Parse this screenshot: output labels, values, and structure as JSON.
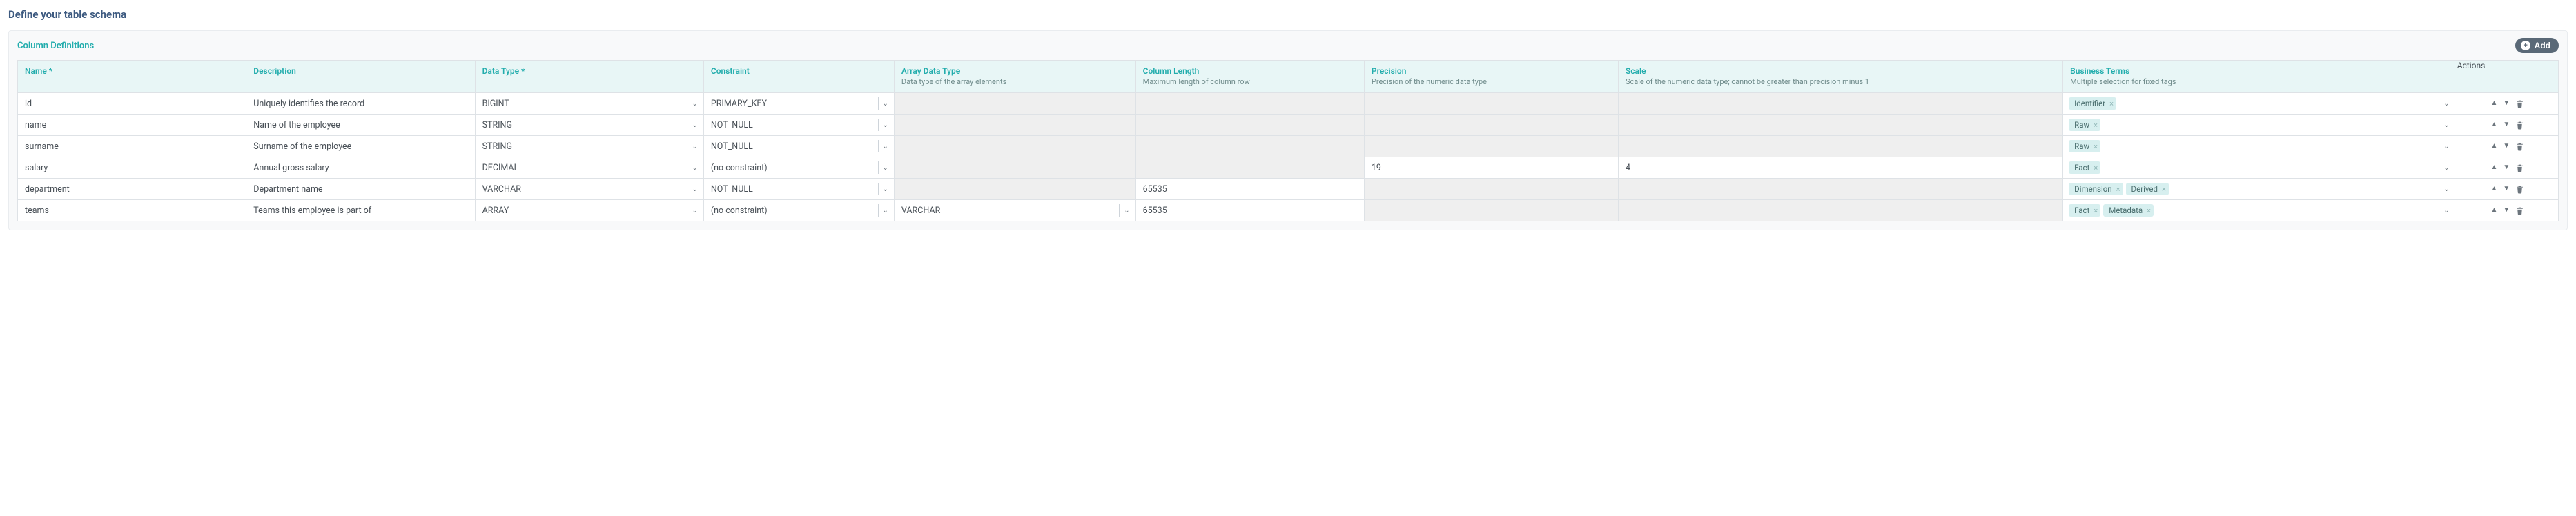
{
  "pageTitle": "Define your table schema",
  "panel": {
    "title": "Column Definitions",
    "addLabel": "Add"
  },
  "headers": {
    "name": {
      "label": "Name *"
    },
    "description": {
      "label": "Description"
    },
    "dataType": {
      "label": "Data Type *"
    },
    "constraint": {
      "label": "Constraint"
    },
    "arrayDataType": {
      "label": "Array Data Type",
      "sub": "Data type of the array elements"
    },
    "columnLength": {
      "label": "Column Length",
      "sub": "Maximum length of column row"
    },
    "precision": {
      "label": "Precision",
      "sub": "Precision of the numeric data type"
    },
    "scale": {
      "label": "Scale",
      "sub": "Scale of the numeric data type; cannot be greater than precision minus 1"
    },
    "businessTerms": {
      "label": "Business Terms",
      "sub": "Multiple selection for fixed tags"
    },
    "actions": {
      "label": "Actions"
    }
  },
  "rows": [
    {
      "name": "id",
      "description": "Uniquely identifies the record",
      "dataType": "BIGINT",
      "constraint": "PRIMARY_KEY",
      "arrayDataType": null,
      "columnLength": null,
      "precision": null,
      "scale": null,
      "terms": [
        "Identifier"
      ],
      "disabled": {
        "arrayDataType": true,
        "columnLength": true,
        "precision": true,
        "scale": true
      }
    },
    {
      "name": "name",
      "description": "Name of the employee",
      "dataType": "STRING",
      "constraint": "NOT_NULL",
      "arrayDataType": null,
      "columnLength": null,
      "precision": null,
      "scale": null,
      "terms": [
        "Raw"
      ],
      "disabled": {
        "arrayDataType": true,
        "columnLength": true,
        "precision": true,
        "scale": true
      }
    },
    {
      "name": "surname",
      "description": "Surname of the employee",
      "dataType": "STRING",
      "constraint": "NOT_NULL",
      "arrayDataType": null,
      "columnLength": null,
      "precision": null,
      "scale": null,
      "terms": [
        "Raw"
      ],
      "disabled": {
        "arrayDataType": true,
        "columnLength": true,
        "precision": true,
        "scale": true
      }
    },
    {
      "name": "salary",
      "description": "Annual gross salary",
      "dataType": "DECIMAL",
      "constraint": "(no constraint)",
      "arrayDataType": null,
      "columnLength": null,
      "precision": "19",
      "scale": "4",
      "terms": [
        "Fact"
      ],
      "disabled": {
        "arrayDataType": true,
        "columnLength": true,
        "precision": false,
        "scale": false
      }
    },
    {
      "name": "department",
      "description": "Department name",
      "dataType": "VARCHAR",
      "constraint": "NOT_NULL",
      "arrayDataType": null,
      "columnLength": "65535",
      "precision": null,
      "scale": null,
      "terms": [
        "Dimension",
        "Derived"
      ],
      "disabled": {
        "arrayDataType": true,
        "columnLength": false,
        "precision": true,
        "scale": true
      }
    },
    {
      "name": "teams",
      "description": "Teams this employee is part of",
      "dataType": "ARRAY",
      "constraint": "(no constraint)",
      "arrayDataType": "VARCHAR",
      "columnLength": "65535",
      "precision": null,
      "scale": null,
      "terms": [
        "Fact",
        "Metadata"
      ],
      "disabled": {
        "arrayDataType": false,
        "columnLength": false,
        "precision": true,
        "scale": true
      }
    }
  ],
  "colors": {
    "accent": "#23adad",
    "headerBg": "#e8f6f6",
    "tagBg": "#d7efef",
    "disabledBg": "#efefef",
    "buttonBg": "#5a6977",
    "titleColor": "#3d5a80",
    "border": "#dee2e6"
  }
}
